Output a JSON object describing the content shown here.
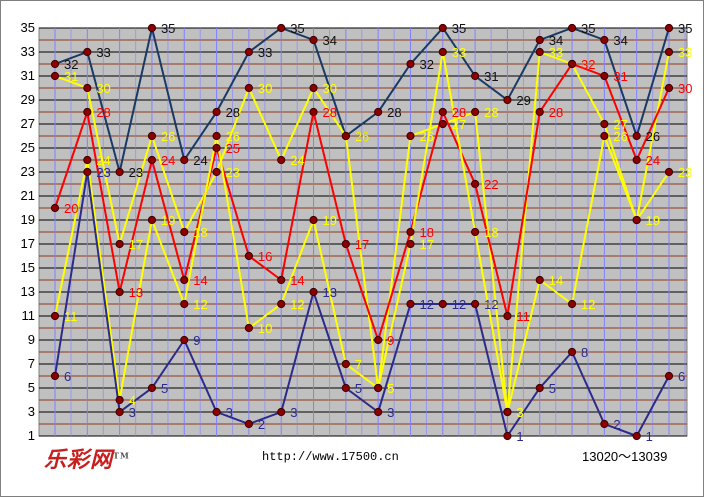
{
  "chart_data": {
    "type": "line",
    "x_count": 20,
    "y_ticks": [
      1,
      3,
      5,
      7,
      9,
      11,
      13,
      15,
      17,
      19,
      21,
      23,
      25,
      27,
      29,
      31,
      33,
      35
    ],
    "ylim": [
      1,
      35
    ],
    "grid": true,
    "series": [
      {
        "color": "#1a3a66",
        "values": [
          32,
          33,
          23,
          35,
          24,
          28,
          33,
          35,
          34,
          26,
          28,
          32,
          35,
          31,
          29,
          34,
          35,
          34,
          26,
          35
        ],
        "labels": [
          "32",
          "33",
          "23",
          "35",
          "24",
          "28",
          "33",
          "35",
          "34",
          "26",
          "28",
          "32",
          "35",
          "31",
          "29",
          "34",
          "35",
          "34",
          "26",
          "35"
        ]
      },
      {
        "color": "#ffff00",
        "values": [
          31,
          30,
          17,
          26,
          18,
          23,
          30,
          24,
          30,
          26,
          5,
          26,
          27,
          28,
          3,
          33,
          32,
          27,
          19,
          33
        ],
        "labels": [
          "31",
          "30",
          "17",
          "26",
          "18",
          "23",
          "30",
          "24",
          "30",
          "26",
          "5",
          "26",
          "27",
          "28",
          "3",
          "33",
          "32",
          "27",
          "19",
          "33"
        ]
      },
      {
        "color": "#ff0000",
        "values": [
          20,
          28,
          13,
          24,
          14,
          25,
          16,
          14,
          28,
          17,
          9,
          18,
          28,
          22,
          11,
          28,
          32,
          31,
          24,
          30
        ],
        "labels": [
          "20",
          "28",
          "13",
          "24",
          "14",
          "25",
          "16",
          "14",
          "28",
          "17",
          "9",
          "18",
          "28",
          "22",
          "11",
          "28",
          "32",
          "31",
          "24",
          "30"
        ]
      },
      {
        "color": "#ffff00",
        "values": [
          11,
          24,
          4,
          19,
          12,
          26,
          10,
          12,
          19,
          7,
          5,
          17,
          33,
          18,
          3,
          14,
          12,
          26,
          19,
          23
        ],
        "labels": [
          "11",
          "24",
          "4",
          "19",
          "12",
          "26",
          "10",
          "12",
          "19",
          "7",
          "5",
          "17",
          "33",
          "18",
          "3",
          "14",
          "12",
          "26",
          "19",
          "23"
        ]
      },
      {
        "color": "#2b2b8c",
        "values": [
          6,
          23,
          3,
          5,
          9,
          3,
          2,
          3,
          13,
          5,
          3,
          12,
          12,
          12,
          1,
          5,
          8,
          2,
          1,
          6
        ],
        "labels": [
          "6",
          "23",
          "3",
          "5",
          "9",
          "3",
          "2",
          "3",
          "13",
          "5",
          "3",
          "12",
          "12",
          "12",
          "1",
          "5",
          "8",
          "2",
          "1",
          "6"
        ]
      }
    ]
  },
  "footer": {
    "logo_text": "乐彩网",
    "logo_mark": "TM",
    "url": "http://www.17500.cn",
    "range": "13020～13039"
  }
}
